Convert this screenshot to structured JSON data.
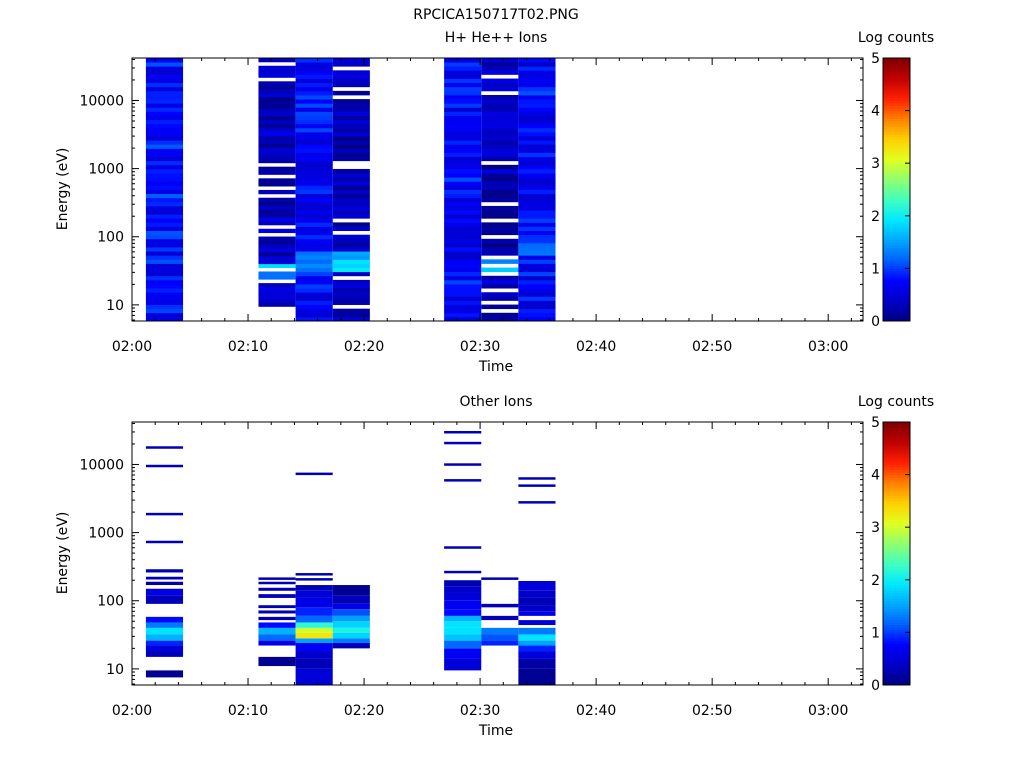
{
  "figure_title": "RPCICA150717T02.PNG",
  "colormap": [
    "#000080",
    "#0000c8",
    "#0000ff",
    "#0060ff",
    "#00a8ff",
    "#00e8ff",
    "#40ffc0",
    "#90ff70",
    "#e0ff20",
    "#ffd000",
    "#ff8000",
    "#ff2000",
    "#c00000",
    "#800000"
  ],
  "chart_data": [
    {
      "type": "heatmap",
      "title": "H+ He++ Ions",
      "xlabel": "Time",
      "ylabel": "Energy (eV)",
      "ylog": true,
      "xlim_minutes": [
        0,
        63
      ],
      "ylim": [
        5.8,
        42000
      ],
      "xticks": [
        "02:00",
        "02:10",
        "02:20",
        "02:30",
        "02:40",
        "02:50",
        "03:00"
      ],
      "yticks": [
        "10",
        "100",
        "1000",
        "10000"
      ],
      "colorbar": {
        "label": "Log counts",
        "range": [
          0,
          5
        ],
        "ticks": [
          "0",
          "1",
          "2",
          "3",
          "4",
          "5"
        ]
      },
      "columns": [
        {
          "t0": 1.2,
          "t1": 4.4,
          "emin": 5.8,
          "emax": 42000,
          "seed": 11,
          "base": 0.8,
          "spread": 0.35,
          "gaps": 0.0,
          "hot": []
        },
        {
          "t0": 10.9,
          "t1": 14.1,
          "emin": 9.5,
          "emax": 42000,
          "seed": 23,
          "base": 0.35,
          "spread": 0.3,
          "gaps": 0.12,
          "hot": [
            [
              28,
              40,
              1.8
            ],
            [
              22,
              28,
              1.3
            ]
          ]
        },
        {
          "t0": 14.1,
          "t1": 17.3,
          "emin": 5.8,
          "emax": 42000,
          "seed": 37,
          "base": 0.75,
          "spread": 0.35,
          "gaps": 0.0,
          "hot": [
            [
              30,
              60,
              1.3
            ]
          ]
        },
        {
          "t0": 17.3,
          "t1": 20.5,
          "emin": 5.8,
          "emax": 42000,
          "seed": 41,
          "base": 0.3,
          "spread": 0.25,
          "gaps": 0.14,
          "hot": [
            [
              30,
              45,
              1.9
            ],
            [
              45,
              60,
              1.5
            ]
          ]
        },
        {
          "t0": 26.9,
          "t1": 30.1,
          "emin": 5.8,
          "emax": 42000,
          "seed": 53,
          "base": 0.75,
          "spread": 0.35,
          "gaps": 0.03,
          "hot": [
            [
              12,
              20,
              0.9
            ]
          ]
        },
        {
          "t0": 30.1,
          "t1": 33.3,
          "emin": 5.8,
          "emax": 42000,
          "seed": 67,
          "base": 0.3,
          "spread": 0.3,
          "gaps": 0.12,
          "hot": [
            [
              28,
              40,
              1.8
            ],
            [
              40,
              48,
              1.4
            ]
          ]
        },
        {
          "t0": 33.3,
          "t1": 36.5,
          "emin": 5.8,
          "emax": 42000,
          "seed": 79,
          "base": 0.75,
          "spread": 0.35,
          "gaps": 0.0,
          "hot": [
            [
              50,
              80,
              1.3
            ]
          ]
        }
      ]
    },
    {
      "type": "heatmap",
      "title": "Other Ions",
      "xlabel": "Time",
      "ylabel": "Energy (eV)",
      "ylog": true,
      "xlim_minutes": [
        0,
        63
      ],
      "ylim": [
        5.8,
        42000
      ],
      "xticks": [
        "02:00",
        "02:10",
        "02:20",
        "02:30",
        "02:40",
        "02:50",
        "03:00"
      ],
      "yticks": [
        "10",
        "100",
        "1000",
        "10000"
      ],
      "colorbar": {
        "label": "Log counts",
        "range": [
          0,
          5
        ],
        "ticks": [
          "0",
          "1",
          "2",
          "3",
          "4",
          "5"
        ]
      },
      "columns": [
        {
          "t0": 1.2,
          "t1": 4.4,
          "bands": [
            [
              7.5,
              9.5,
              0.1
            ],
            [
              15,
              18,
              0.3
            ],
            [
              18,
              22,
              0.5
            ],
            [
              22,
              26,
              0.9
            ],
            [
              26,
              32,
              1.6
            ],
            [
              32,
              40,
              1.9
            ],
            [
              40,
              48,
              1.3
            ],
            [
              48,
              58,
              0.8
            ],
            [
              90,
              120,
              0.3
            ],
            [
              120,
              150,
              0.6
            ],
            [
              170,
              190,
              0.2
            ],
            [
              205,
              225,
              0.3
            ],
            [
              260,
              290,
              0.3
            ],
            [
              700,
              760,
              0.3
            ],
            [
              1850,
              1950,
              0.3
            ],
            [
              9400,
              9900,
              0.3
            ],
            [
              17500,
              18500,
              0.3
            ]
          ]
        },
        {
          "t0": 10.9,
          "t1": 14.1,
          "bands": [
            [
              11,
              15,
              0.1
            ],
            [
              22,
              26,
              0.6
            ],
            [
              26,
              32,
              1.2
            ],
            [
              32,
              40,
              1.6
            ],
            [
              40,
              48,
              0.8
            ],
            [
              52,
              58,
              0.3
            ],
            [
              65,
              72,
              0.3
            ],
            [
              78,
              86,
              0.3
            ],
            [
              110,
              125,
              0.3
            ],
            [
              140,
              155,
              0.3
            ],
            [
              175,
              190,
              0.3
            ],
            [
              205,
              220,
              0.3
            ]
          ]
        },
        {
          "t0": 14.1,
          "t1": 17.3,
          "bands": [
            [
              5.8,
              10,
              0.5
            ],
            [
              10,
              14,
              0.3
            ],
            [
              14,
              18,
              0.4
            ],
            [
              18,
              24,
              0.7
            ],
            [
              24,
              28,
              1.5
            ],
            [
              28,
              34,
              3.3
            ],
            [
              34,
              40,
              3.0
            ],
            [
              40,
              48,
              2.2
            ],
            [
              48,
              60,
              1.2
            ],
            [
              60,
              80,
              0.9
            ],
            [
              80,
              110,
              0.6
            ],
            [
              110,
              140,
              0.5
            ],
            [
              140,
              170,
              0.3
            ],
            [
              200,
              215,
              0.3
            ],
            [
              240,
              255,
              0.3
            ],
            [
              7200,
              7600,
              0.3
            ]
          ]
        },
        {
          "t0": 17.3,
          "t1": 20.5,
          "bands": [
            [
              20,
              24,
              0.3
            ],
            [
              24,
              28,
              1.3
            ],
            [
              28,
              34,
              1.8
            ],
            [
              34,
              40,
              2.1
            ],
            [
              40,
              50,
              1.8
            ],
            [
              50,
              60,
              1.5
            ],
            [
              60,
              75,
              1.1
            ],
            [
              75,
              90,
              0.6
            ],
            [
              90,
              120,
              0.3
            ],
            [
              120,
              170,
              0.1
            ]
          ]
        },
        {
          "t0": 26.9,
          "t1": 30.1,
          "bands": [
            [
              9.5,
              14,
              0.5
            ],
            [
              14,
              20,
              0.7
            ],
            [
              20,
              26,
              1.2
            ],
            [
              26,
              32,
              1.7
            ],
            [
              32,
              40,
              1.9
            ],
            [
              40,
              50,
              1.9
            ],
            [
              50,
              60,
              1.6
            ],
            [
              60,
              75,
              0.8
            ],
            [
              75,
              100,
              0.7
            ],
            [
              100,
              130,
              0.5
            ],
            [
              130,
              160,
              0.4
            ],
            [
              160,
              200,
              0.3
            ],
            [
              255,
              275,
              0.3
            ],
            [
              580,
              630,
              0.3
            ],
            [
              5800,
              6100,
              0.3
            ],
            [
              9900,
              10400,
              0.3
            ],
            [
              20500,
              21500,
              0.3
            ],
            [
              29000,
              31000,
              0.3
            ]
          ]
        },
        {
          "t0": 30.1,
          "t1": 33.3,
          "bands": [
            [
              22,
              26,
              0.9
            ],
            [
              26,
              32,
              1.1
            ],
            [
              32,
              40,
              1.3
            ],
            [
              52,
              60,
              0.3
            ],
            [
              80,
              90,
              0.3
            ],
            [
              205,
              220,
              0.3
            ]
          ]
        },
        {
          "t0": 33.3,
          "t1": 36.5,
          "bands": [
            [
              5.8,
              10,
              0.1
            ],
            [
              10,
              14,
              0.2
            ],
            [
              14,
              18,
              0.5
            ],
            [
              18,
              22,
              0.9
            ],
            [
              22,
              26,
              1.5
            ],
            [
              26,
              32,
              1.9
            ],
            [
              32,
              40,
              1.3
            ],
            [
              44,
              52,
              0.5
            ],
            [
              60,
              70,
              0.6
            ],
            [
              70,
              85,
              0.4
            ],
            [
              85,
              110,
              0.3
            ],
            [
              110,
              140,
              0.4
            ],
            [
              140,
              195,
              0.5
            ],
            [
              2700,
              2900,
              0.3
            ],
            [
              4800,
              5100,
              0.3
            ],
            [
              6200,
              6500,
              0.3
            ]
          ]
        }
      ]
    }
  ]
}
